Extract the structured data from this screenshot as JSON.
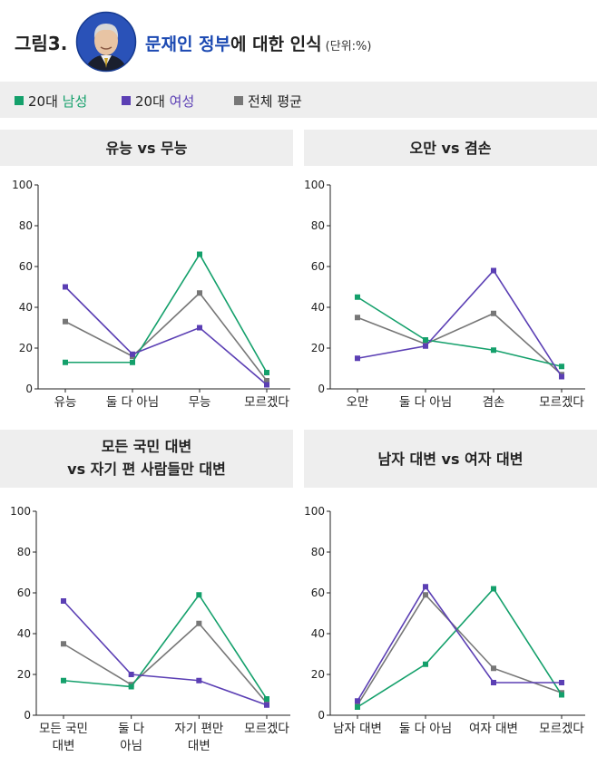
{
  "header": {
    "figure_label": "그림3.",
    "title_highlight": "문재인 정부",
    "title_rest": "에 대한 인식",
    "unit": "(단위:%)"
  },
  "legend": [
    {
      "prefix": "20대",
      "name": "남성",
      "color": "#14a06b"
    },
    {
      "prefix": "20대",
      "name": "여성",
      "color": "#5b3fb4"
    },
    {
      "prefix": "",
      "name": "전체 평균",
      "color": "#777777"
    }
  ],
  "colors": {
    "male": "#14a06b",
    "female": "#5b3fb4",
    "average": "#777777",
    "header_bg": "#eeeeee"
  },
  "chart_data": [
    {
      "type": "line",
      "title": [
        "유능 vs 무능"
      ],
      "categories": [
        [
          "유능"
        ],
        [
          "둘 다 아님"
        ],
        [
          "무능"
        ],
        [
          "모르겠다"
        ]
      ],
      "yticks": [
        "0",
        "20",
        "40",
        "60",
        "80",
        "100"
      ],
      "ylim": [
        0,
        100
      ],
      "series": [
        {
          "name": "20대 남성",
          "values": [
            13,
            13,
            66,
            8
          ]
        },
        {
          "name": "20대 여성",
          "values": [
            50,
            17,
            30,
            2
          ]
        },
        {
          "name": "전체 평균",
          "values": [
            33,
            16,
            47,
            4
          ]
        }
      ]
    },
    {
      "type": "line",
      "title": [
        "오만 vs 겸손"
      ],
      "categories": [
        [
          "오만"
        ],
        [
          "둘 다 아님"
        ],
        [
          "겸손"
        ],
        [
          "모르겠다"
        ]
      ],
      "yticks": [
        "0",
        "20",
        "40",
        "60",
        "80",
        "100"
      ],
      "ylim": [
        0,
        100
      ],
      "series": [
        {
          "name": "20대 남성",
          "values": [
            45,
            24,
            19,
            11
          ]
        },
        {
          "name": "20대 여성",
          "values": [
            15,
            21,
            58,
            6
          ]
        },
        {
          "name": "전체 평균",
          "values": [
            35,
            22,
            37,
            7
          ]
        }
      ]
    },
    {
      "type": "line",
      "title": [
        "모든 국민 대변",
        "vs 자기 편 사람들만 대변"
      ],
      "categories": [
        [
          "모든 국민",
          "대변"
        ],
        [
          "둘 다",
          "아님"
        ],
        [
          "자기 편만",
          "대변"
        ],
        [
          "모르겠다"
        ]
      ],
      "yticks": [
        "0",
        "20",
        "40",
        "60",
        "80",
        "100"
      ],
      "ylim": [
        0,
        100
      ],
      "series": [
        {
          "name": "20대 남성",
          "values": [
            17,
            14,
            59,
            8
          ]
        },
        {
          "name": "20대 여성",
          "values": [
            56,
            20,
            17,
            5
          ]
        },
        {
          "name": "전체 평균",
          "values": [
            35,
            15,
            45,
            6
          ]
        }
      ]
    },
    {
      "type": "line",
      "title": [
        "남자 대변 vs 여자 대변"
      ],
      "categories": [
        [
          "남자 대변"
        ],
        [
          "둘 다 아님"
        ],
        [
          "여자 대변"
        ],
        [
          "모르겠다"
        ]
      ],
      "yticks": [
        "0",
        "20",
        "40",
        "60",
        "80",
        "100"
      ],
      "ylim": [
        0,
        100
      ],
      "series": [
        {
          "name": "20대 남성",
          "values": [
            4,
            25,
            62,
            10
          ]
        },
        {
          "name": "20대 여성",
          "values": [
            7,
            63,
            16,
            16
          ]
        },
        {
          "name": "전체 평균",
          "values": [
            5,
            59,
            23,
            11
          ]
        }
      ]
    }
  ]
}
